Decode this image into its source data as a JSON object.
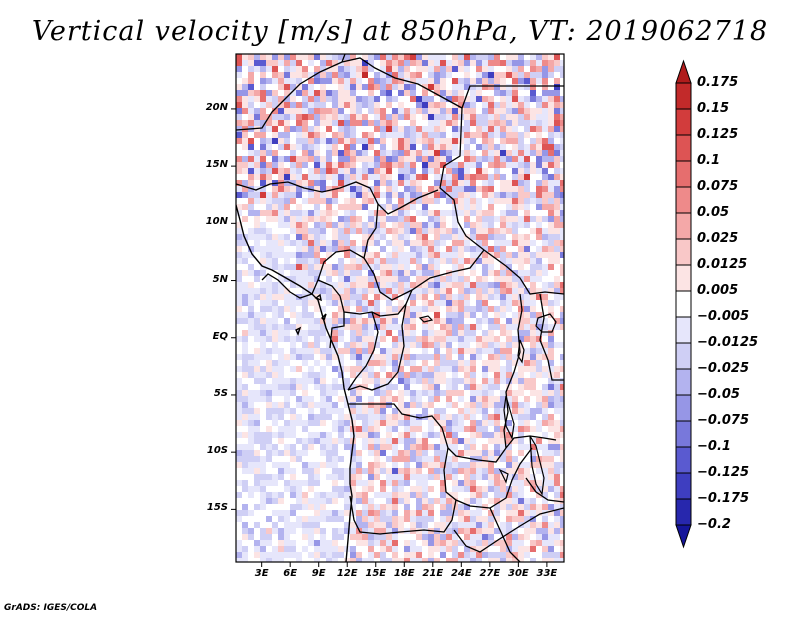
{
  "title": "Vertical velocity [m/s] at 850hPa, VT: 2019062718",
  "footer": "GrADS: IGES/COLA",
  "lat_labels": [
    "20N",
    "15N",
    "10N",
    "5N",
    "EQ",
    "5S",
    "10S",
    "15S"
  ],
  "lat_values": [
    20,
    15,
    10,
    5,
    0,
    -5,
    -10,
    -15
  ],
  "lon_labels": [
    "3E",
    "6E",
    "9E",
    "12E",
    "15E",
    "18E",
    "21E",
    "24E",
    "27E",
    "30E",
    "33E"
  ],
  "lon_values": [
    3,
    6,
    9,
    12,
    15,
    18,
    21,
    24,
    27,
    30,
    33
  ],
  "map_extent": {
    "lon_min": 0.3,
    "lon_max": 34.8,
    "lat_min": -19.6,
    "lat_max": 24.8
  },
  "colorbar": {
    "labels": [
      "0.175",
      "0.15",
      "0.125",
      "0.1",
      "0.075",
      "0.05",
      "0.025",
      "0.0125",
      "0.005",
      "−0.005",
      "−0.0125",
      "−0.025",
      "−0.05",
      "−0.075",
      "−0.1",
      "−0.125",
      "−0.175",
      "−0.2"
    ],
    "colors": [
      "#b01c1c",
      "#c22a2a",
      "#d23c3c",
      "#dd5454",
      "#e66e6e",
      "#ee8a8a",
      "#f4a8a8",
      "#f9c8c8",
      "#fce4e4",
      "#ffffff",
      "#e6e6fb",
      "#cfcff5",
      "#b3b3ef",
      "#9696e6",
      "#7878db",
      "#5a5ad0",
      "#3e3ec0",
      "#2727ad",
      "#15159a"
    ]
  }
}
